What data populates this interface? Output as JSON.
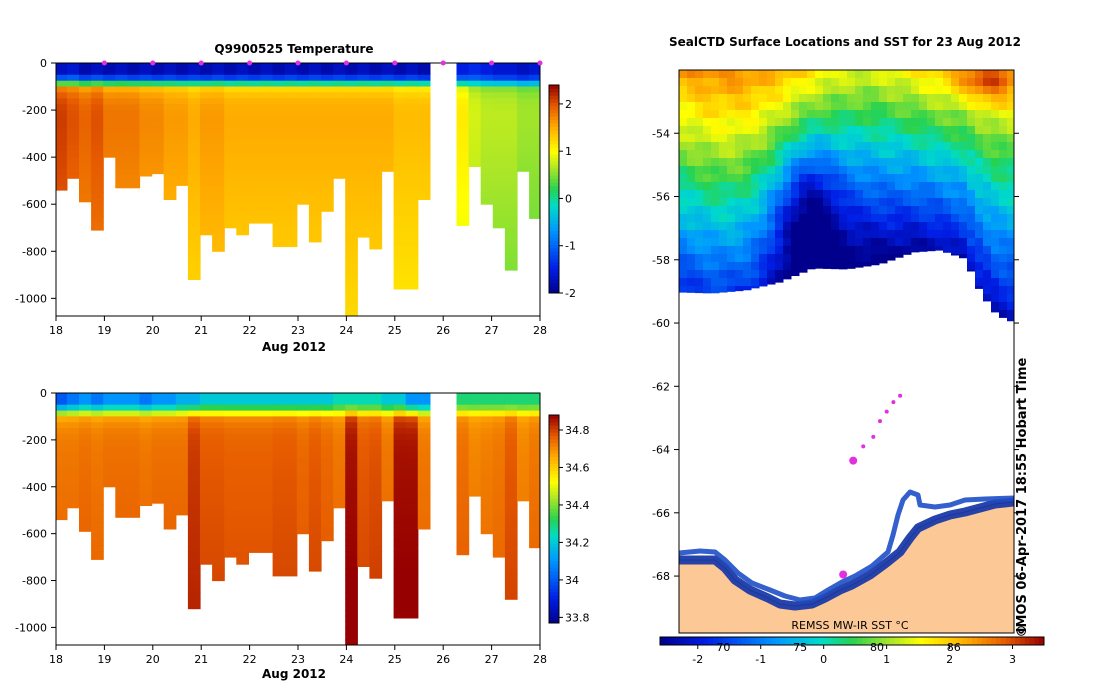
{
  "chart_data": [
    {
      "type": "heatmap",
      "title": "Q9900525  Temperature",
      "xlabel": "Aug 2012",
      "ylabel": "",
      "xlim": [
        18,
        28
      ],
      "ylim": [
        -1075,
        0
      ],
      "x_ticks": [
        "18",
        "19",
        "20",
        "21",
        "22",
        "23",
        "24",
        "25",
        "26",
        "27",
        "28"
      ],
      "y_ticks": [
        "0",
        "-200",
        "-400",
        "-600",
        "-800",
        "-1000"
      ],
      "colorbar_ticks": [
        "2",
        "1",
        "0",
        "-1",
        "-2"
      ],
      "colorbar_range": [
        -2,
        2.4
      ],
      "profile_days": [
        18.1,
        18.35,
        18.6,
        18.85,
        19.1,
        19.35,
        19.6,
        19.85,
        20.1,
        20.35,
        20.6,
        20.85,
        21.1,
        21.35,
        21.6,
        21.85,
        22.1,
        22.35,
        22.6,
        22.85,
        23.1,
        23.35,
        23.6,
        23.85,
        24.1,
        24.35,
        24.6,
        24.85,
        25.1,
        25.35,
        25.6,
        26.4,
        26.65,
        26.9,
        27.15,
        27.4,
        27.65,
        27.9
      ],
      "profile_max_depth": [
        540,
        490,
        590,
        710,
        400,
        530,
        530,
        480,
        470,
        580,
        520,
        920,
        730,
        800,
        700,
        730,
        680,
        680,
        780,
        780,
        600,
        760,
        630,
        490,
        1075,
        740,
        790,
        460,
        960,
        960,
        580,
        690,
        440,
        600,
        700,
        880,
        460,
        660
      ],
      "surface_temperature": [
        -1.7,
        -1.6,
        -1.8,
        -1.7,
        -1.8,
        -1.7,
        -1.8,
        -1.7,
        -1.8,
        -1.7,
        -1.8,
        -1.7,
        -1.8,
        -1.7,
        -1.8,
        -1.7,
        -1.8,
        -1.7,
        -1.8,
        -1.7,
        -1.8,
        -1.7,
        -1.8,
        -1.7,
        -1.8,
        -1.7,
        -1.8,
        -1.7,
        -1.8,
        -1.7,
        -1.8,
        -1.5,
        -1.4,
        -1.5,
        -1.6,
        -1.6,
        -1.7,
        -1.6
      ],
      "deep_temperature": [
        2.2,
        2.1,
        2.0,
        2.1,
        1.9,
        1.9,
        1.9,
        1.8,
        1.8,
        1.7,
        1.7,
        1.6,
        1.7,
        1.7,
        1.6,
        1.6,
        1.6,
        1.6,
        1.6,
        1.6,
        1.6,
        1.6,
        1.6,
        1.6,
        1.6,
        1.6,
        1.6,
        1.6,
        1.5,
        1.5,
        1.5,
        1.2,
        0.9,
        0.8,
        0.8,
        0.8,
        0.7,
        0.7
      ],
      "surface_marker_days": [
        19.0,
        20.0,
        21.0,
        22.0,
        23.0,
        24.0,
        25.0,
        26.0,
        27.0,
        28.0
      ]
    },
    {
      "type": "heatmap",
      "title": "",
      "xlabel": "Aug 2012",
      "ylabel": "",
      "xlim": [
        18,
        28
      ],
      "ylim": [
        -1075,
        0
      ],
      "x_ticks": [
        "18",
        "19",
        "20",
        "21",
        "22",
        "23",
        "24",
        "25",
        "26",
        "27",
        "28"
      ],
      "y_ticks": [
        "0",
        "-200",
        "-400",
        "-600",
        "-800",
        "-1000"
      ],
      "colorbar_ticks": [
        "34.8",
        "34.6",
        "34.4",
        "34.2",
        "34",
        "33.8"
      ],
      "colorbar_range": [
        33.77,
        34.88
      ],
      "surface_salinity": [
        34.0,
        34.05,
        34.1,
        34.05,
        34.1,
        34.1,
        34.1,
        34.05,
        34.1,
        34.1,
        34.15,
        34.15,
        34.2,
        34.2,
        34.2,
        34.2,
        34.2,
        34.2,
        34.2,
        34.2,
        34.2,
        34.2,
        34.2,
        34.25,
        34.25,
        34.25,
        34.25,
        34.2,
        34.2,
        34.1,
        34.1,
        34.3,
        34.3,
        34.3,
        34.3,
        34.3,
        34.3,
        34.3
      ],
      "deep_salinity": [
        34.72,
        34.72,
        34.73,
        34.72,
        34.73,
        34.73,
        34.73,
        34.72,
        34.73,
        34.73,
        34.73,
        34.8,
        34.76,
        34.76,
        34.75,
        34.75,
        34.75,
        34.75,
        34.76,
        34.76,
        34.74,
        34.76,
        34.74,
        34.72,
        34.85,
        34.76,
        34.77,
        34.72,
        34.85,
        34.85,
        34.72,
        34.73,
        34.7,
        34.71,
        34.72,
        34.76,
        34.7,
        34.72
      ]
    },
    {
      "type": "heatmap",
      "title": "SealCTD Surface Locations and SST for 23 Aug 2012",
      "xlabel": "",
      "ylabel": "",
      "y_ticks": [
        "-54",
        "-56",
        "-58",
        "-60",
        "-62",
        "-64",
        "-66",
        "-68"
      ],
      "ylim": [
        -69.8,
        -52.0
      ],
      "colorbar_label": "REMSS MW-IR SST °C",
      "colorbar_ticks": [
        "-2",
        "-1",
        "0",
        "1",
        "2",
        "3"
      ],
      "colorbar_range": [
        -2.6,
        3.5
      ],
      "colorbar_overlay_ticks": [
        "70",
        "75",
        "80",
        "86"
      ],
      "timestamp": "IMOS 06-Apr-2017 18:55 Hobart Time",
      "copyright": "©",
      "seal_positions": [
        {
          "lon_frac": 0.52,
          "lat": -64.35,
          "size": "large"
        },
        {
          "lon_frac": 0.58,
          "lat": -63.6,
          "size": "small"
        },
        {
          "lon_frac": 0.6,
          "lat": -63.1,
          "size": "small"
        },
        {
          "lon_frac": 0.62,
          "lat": -62.8,
          "size": "small"
        },
        {
          "lon_frac": 0.64,
          "lat": -62.5,
          "size": "small"
        },
        {
          "lon_frac": 0.66,
          "lat": -62.3,
          "size": "small"
        },
        {
          "lon_frac": 0.55,
          "lat": -63.9,
          "size": "small"
        },
        {
          "lon_frac": 0.49,
          "lat": -67.95,
          "size": "large"
        }
      ]
    }
  ],
  "colors": {
    "marker": "#e030e0",
    "land": "#fcc896",
    "ice_edge": "#1a3aa8"
  }
}
